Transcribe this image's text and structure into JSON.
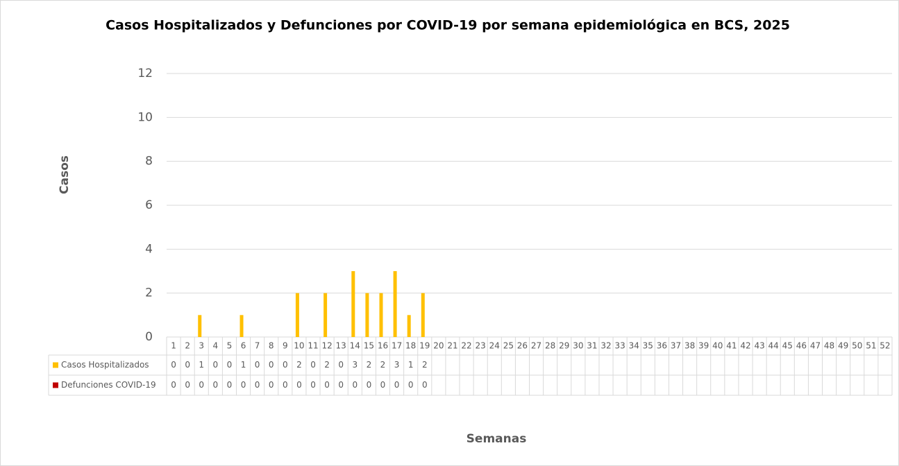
{
  "chart_data": {
    "type": "bar",
    "title": "Casos Hospitalizados y Defunciones por COVID-19 por semana epidemiológica en BCS, 2025",
    "y_label": "Casos",
    "x_label": "Semanas",
    "categories": [
      "1",
      "2",
      "3",
      "4",
      "5",
      "6",
      "7",
      "8",
      "9",
      "10",
      "11",
      "12",
      "13",
      "14",
      "15",
      "16",
      "17",
      "18",
      "19",
      "20",
      "21",
      "22",
      "23",
      "24",
      "25",
      "26",
      "27",
      "28",
      "29",
      "30",
      "31",
      "32",
      "33",
      "34",
      "35",
      "36",
      "37",
      "38",
      "39",
      "40",
      "41",
      "42",
      "43",
      "44",
      "45",
      "46",
      "47",
      "48",
      "49",
      "50",
      "51",
      "52"
    ],
    "series": [
      {
        "name": "Casos Hospitalizados",
        "color": "#ffc000",
        "values": [
          0,
          0,
          1,
          0,
          0,
          1,
          0,
          0,
          0,
          2,
          0,
          2,
          0,
          3,
          2,
          2,
          3,
          1,
          2,
          null,
          null,
          null,
          null,
          null,
          null,
          null,
          null,
          null,
          null,
          null,
          null,
          null,
          null,
          null,
          null,
          null,
          null,
          null,
          null,
          null,
          null,
          null,
          null,
          null,
          null,
          null,
          null,
          null,
          null,
          null,
          null,
          null
        ]
      },
      {
        "name": "Defunciones COVID-19",
        "color": "#c00000",
        "values": [
          0,
          0,
          0,
          0,
          0,
          0,
          0,
          0,
          0,
          0,
          0,
          0,
          0,
          0,
          0,
          0,
          0,
          0,
          0,
          null,
          null,
          null,
          null,
          null,
          null,
          null,
          null,
          null,
          null,
          null,
          null,
          null,
          null,
          null,
          null,
          null,
          null,
          null,
          null,
          null,
          null,
          null,
          null,
          null,
          null,
          null,
          null,
          null,
          null,
          null,
          null,
          null
        ]
      }
    ],
    "ylim": [
      0,
      12
    ],
    "yticks": [
      0,
      2,
      4,
      6,
      8,
      10,
      12
    ],
    "grid": true,
    "data_table": true
  }
}
